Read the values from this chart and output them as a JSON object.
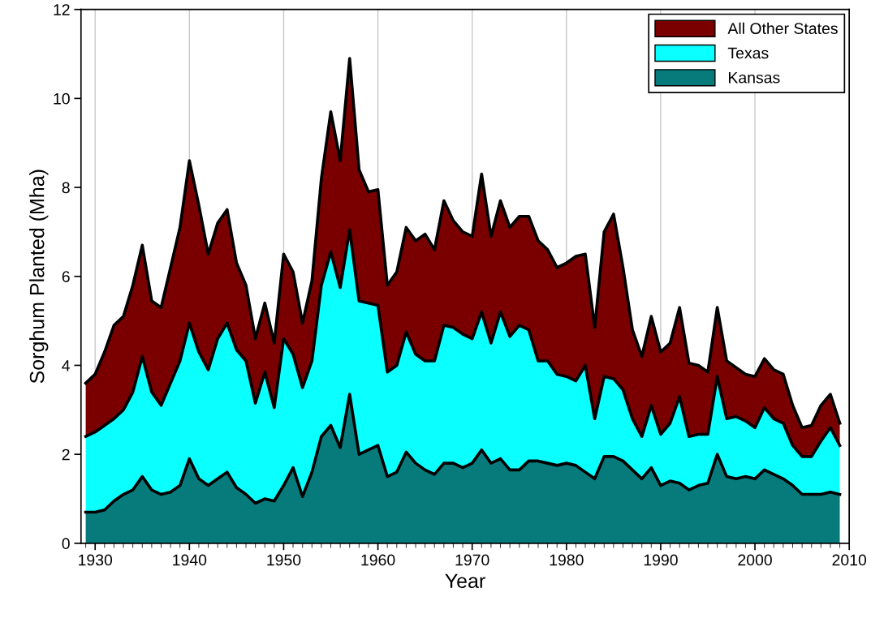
{
  "chart_data": {
    "type": "area",
    "stacked": true,
    "xlabel": "Year",
    "ylabel": "Sorghum Planted (Mha)",
    "x": [
      1929,
      1930,
      1931,
      1932,
      1933,
      1934,
      1935,
      1936,
      1937,
      1938,
      1939,
      1940,
      1941,
      1942,
      1943,
      1944,
      1945,
      1946,
      1947,
      1948,
      1949,
      1950,
      1951,
      1952,
      1953,
      1954,
      1955,
      1956,
      1957,
      1958,
      1959,
      1960,
      1961,
      1962,
      1963,
      1964,
      1965,
      1966,
      1967,
      1968,
      1969,
      1970,
      1971,
      1972,
      1973,
      1974,
      1975,
      1976,
      1977,
      1978,
      1979,
      1980,
      1981,
      1982,
      1983,
      1984,
      1985,
      1986,
      1987,
      1988,
      1989,
      1990,
      1991,
      1992,
      1993,
      1994,
      1995,
      1996,
      1997,
      1998,
      1999,
      2000,
      2001,
      2002,
      2003,
      2004,
      2005,
      2006,
      2007,
      2008,
      2009
    ],
    "series": [
      {
        "name": "Kansas",
        "color": "#077b7b",
        "values": [
          0.7,
          0.7,
          0.75,
          0.95,
          1.1,
          1.2,
          1.5,
          1.2,
          1.1,
          1.15,
          1.3,
          1.9,
          1.45,
          1.3,
          1.45,
          1.6,
          1.25,
          1.1,
          0.9,
          1.0,
          0.95,
          1.3,
          1.7,
          1.05,
          1.6,
          2.4,
          2.65,
          2.15,
          3.35,
          2.0,
          2.1,
          2.2,
          1.5,
          1.6,
          2.05,
          1.8,
          1.65,
          1.55,
          1.8,
          1.8,
          1.7,
          1.8,
          2.1,
          1.8,
          1.9,
          1.65,
          1.65,
          1.85,
          1.85,
          1.8,
          1.75,
          1.8,
          1.75,
          1.6,
          1.45,
          1.95,
          1.95,
          1.85,
          1.65,
          1.45,
          1.7,
          1.3,
          1.4,
          1.35,
          1.2,
          1.3,
          1.35,
          2.0,
          1.5,
          1.45,
          1.5,
          1.45,
          1.65,
          1.55,
          1.45,
          1.3,
          1.1,
          1.1,
          1.1,
          1.15,
          1.1
        ]
      },
      {
        "name": "Texas",
        "color": "#0affff",
        "values": [
          1.7,
          1.8,
          1.9,
          1.85,
          1.9,
          2.2,
          2.7,
          2.2,
          2.0,
          2.45,
          2.8,
          3.05,
          2.85,
          2.6,
          3.15,
          3.35,
          3.1,
          3.0,
          2.25,
          2.85,
          2.1,
          3.3,
          2.55,
          2.45,
          2.5,
          3.4,
          3.9,
          3.6,
          3.7,
          3.45,
          3.3,
          3.15,
          2.35,
          2.4,
          2.7,
          2.45,
          2.45,
          2.55,
          3.1,
          3.05,
          3.0,
          2.8,
          3.1,
          2.7,
          3.3,
          3.0,
          3.25,
          2.95,
          2.25,
          2.3,
          2.05,
          1.95,
          1.9,
          2.4,
          1.35,
          1.8,
          1.75,
          1.6,
          1.15,
          0.95,
          1.4,
          1.15,
          1.3,
          1.95,
          1.2,
          1.15,
          1.1,
          1.75,
          1.3,
          1.4,
          1.25,
          1.15,
          1.4,
          1.25,
          1.25,
          0.9,
          0.85,
          0.85,
          1.2,
          1.45,
          1.1
        ]
      },
      {
        "name": "All Other States",
        "color": "#7a0000",
        "values": [
          1.2,
          1.3,
          1.65,
          2.1,
          2.1,
          2.4,
          2.5,
          2.05,
          2.2,
          2.6,
          3.0,
          3.65,
          3.3,
          2.6,
          2.6,
          2.55,
          1.95,
          1.7,
          1.45,
          1.55,
          1.45,
          1.9,
          1.85,
          1.45,
          1.8,
          2.4,
          3.15,
          2.85,
          3.85,
          2.95,
          2.5,
          2.6,
          1.95,
          2.1,
          2.35,
          2.55,
          2.85,
          2.5,
          2.8,
          2.4,
          2.3,
          2.3,
          3.1,
          2.4,
          2.5,
          2.45,
          2.45,
          2.55,
          2.7,
          2.5,
          2.4,
          2.55,
          2.8,
          2.5,
          2.05,
          3.25,
          3.7,
          2.75,
          2.0,
          1.8,
          2.0,
          1.85,
          1.8,
          2.0,
          1.65,
          1.55,
          1.4,
          1.55,
          1.3,
          1.1,
          1.05,
          1.15,
          1.1,
          1.1,
          1.1,
          0.9,
          0.65,
          0.7,
          0.8,
          0.75,
          0.5
        ]
      }
    ],
    "xlim": [
      1928.5,
      2010
    ],
    "xticks": [
      1930,
      1940,
      1950,
      1960,
      1970,
      1980,
      1990,
      2000,
      2010
    ],
    "ylim": [
      0,
      12
    ],
    "yticks": [
      0,
      2,
      4,
      6,
      8,
      10,
      12
    ],
    "grid": "x",
    "legend": "top right"
  }
}
